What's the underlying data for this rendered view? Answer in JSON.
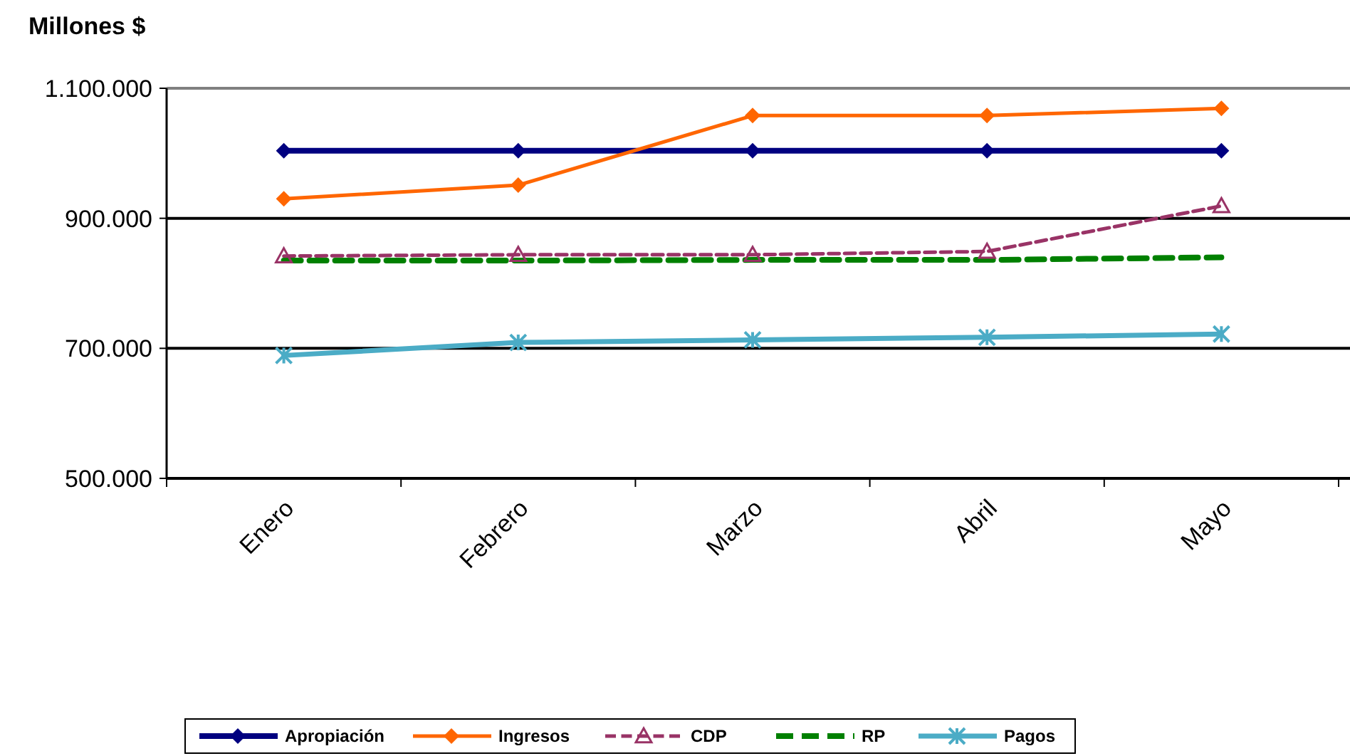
{
  "chart_data": {
    "type": "line",
    "ylabel": "Millones $",
    "categories": [
      "Enero",
      "Febrero",
      "Marzo",
      "Abril",
      "Mayo"
    ],
    "ylim": [
      500000,
      1100000
    ],
    "yticks": [
      {
        "value": 500000,
        "label": "500.000"
      },
      {
        "value": 700000,
        "label": "700.000"
      },
      {
        "value": 900000,
        "label": "900.000"
      },
      {
        "value": 1100000,
        "label": "1.100.000"
      }
    ],
    "grid": "y",
    "legend": "bottom",
    "series": [
      {
        "name": "Apropiación",
        "color": "#000080",
        "marker": "diamond",
        "line_style": "solid",
        "values": [
          1004000,
          1004000,
          1004000,
          1004000,
          1004000
        ]
      },
      {
        "name": "Ingresos",
        "color": "#ff6600",
        "marker": "diamond",
        "line_style": "solid",
        "values": [
          930000,
          951000,
          1058000,
          1058000,
          1069000
        ]
      },
      {
        "name": "CDP",
        "color": "#993366",
        "marker": "triangle",
        "line_style": "dashed",
        "values": [
          842000,
          844000,
          844000,
          849000,
          919000
        ]
      },
      {
        "name": "RP",
        "color": "#008000",
        "marker": "none",
        "line_style": "dashed",
        "values": [
          835000,
          835000,
          836000,
          836000,
          840000
        ]
      },
      {
        "name": "Pagos",
        "color": "#4bacc6",
        "marker": "cross",
        "line_style": "solid",
        "values": [
          689000,
          709000,
          713000,
          717000,
          722000
        ]
      }
    ]
  }
}
